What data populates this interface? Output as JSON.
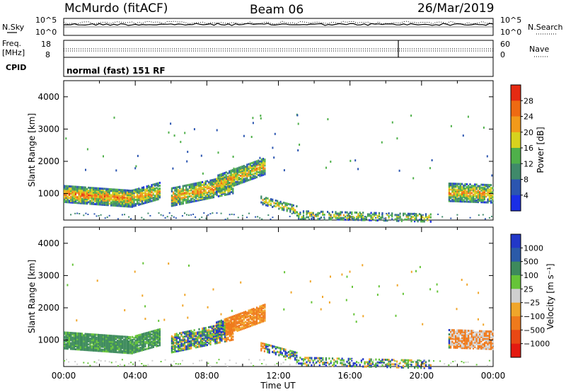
{
  "header": {
    "station": "McMurdo (fitACF)",
    "beam": "Beam 06",
    "date": "26/Mar/2019"
  },
  "strip": {
    "nsky_label": "N.Sky",
    "nsky_ticks": [
      "10^5",
      "10^0"
    ],
    "nsearch_label": "N.Search",
    "nsearch_ticks": [
      "10^5",
      "10^0"
    ],
    "freq_label_1": "Freq.",
    "freq_label_2": "[MHz]",
    "freq_ticks": [
      "18",
      "8"
    ],
    "nave_label": "Nave",
    "nave_ticks": [
      "60",
      "0"
    ],
    "cpid_label": "CPID",
    "cpid_value": "normal (fast) 151 RF"
  },
  "chart_data": [
    {
      "type": "heatmap",
      "name": "power",
      "ylabel": "Slant Range [km]",
      "ylim": [
        180,
        4500
      ],
      "yticks": [
        1000,
        2000,
        3000,
        4000
      ],
      "colorbar_label": "Power [dB]",
      "colorbar_ticks": [
        "4",
        "8",
        "12",
        "16",
        "20",
        "24",
        "28"
      ],
      "colorbar_colors": [
        "#1a2ee6",
        "#2b55b0",
        "#3f8a6a",
        "#4fb04a",
        "#d7d21e",
        "#f29a1a",
        "#ee6a12",
        "#e62a12"
      ],
      "clim": [
        0,
        32
      ],
      "xlim": [
        0,
        24
      ],
      "xticks": [
        "00:00",
        "04:00",
        "08:00",
        "12:00",
        "16:00",
        "20:00",
        "00:00"
      ]
    },
    {
      "type": "heatmap",
      "name": "velocity",
      "ylabel": "Slant Range [km]",
      "ylim": [
        180,
        4500
      ],
      "yticks": [
        1000,
        2000,
        3000,
        4000
      ],
      "colorbar_label": "Velocity [m s⁻¹]",
      "colorbar_ticks": [
        "1000",
        "500",
        "100",
        "25",
        "−25",
        "−100",
        "−500",
        "−1000"
      ],
      "colorbar_colors": [
        "#2238c8",
        "#2b5aa8",
        "#3d8a5c",
        "#66c438",
        "#cfcfcf",
        "#f0a62a",
        "#ef7a1c",
        "#e84814",
        "#e31a10"
      ],
      "xlim": [
        0,
        24
      ],
      "xticks": [
        "00:00",
        "04:00",
        "08:00",
        "12:00",
        "16:00",
        "20:00",
        "00:00"
      ],
      "xlabel": "Time UT"
    }
  ]
}
